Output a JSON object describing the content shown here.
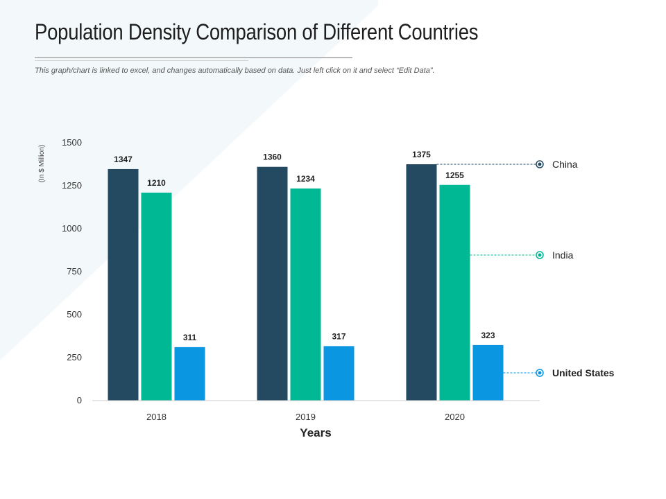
{
  "page": {
    "title": "Population Density Comparison of Different Countries",
    "subtitle": "This graph/chart is linked to excel, and changes automatically based on data. Just left click on it and select “Edit Data”."
  },
  "chart_data": {
    "type": "bar",
    "categories": [
      "2018",
      "2019",
      "2020"
    ],
    "series": [
      {
        "name": "China",
        "values": [
          1347,
          1360,
          1375
        ],
        "color": "#234a61"
      },
      {
        "name": "India",
        "values": [
          1210,
          1234,
          1255
        ],
        "color": "#00b894"
      },
      {
        "name": "United States",
        "values": [
          311,
          317,
          323
        ],
        "color": "#0a96e0"
      }
    ],
    "xlabel": "Years",
    "ylabel": "(In $ Million)",
    "ylim": [
      0,
      1500
    ],
    "yticks": [
      0,
      250,
      500,
      750,
      1000,
      1250,
      1500
    ],
    "grid": false,
    "data_labels": true,
    "legend_position": "right"
  }
}
